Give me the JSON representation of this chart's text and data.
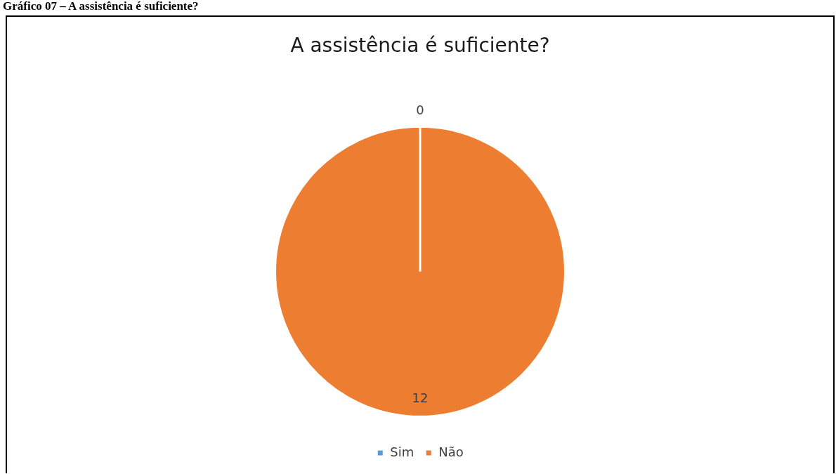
{
  "chart_data": {
    "type": "pie",
    "title": "A assistência é suficiente?",
    "categories": [
      "Sim",
      "Não"
    ],
    "values": [
      0,
      12
    ],
    "colors": [
      "#5b9bd5",
      "#ed7d31"
    ],
    "value_labels": [
      "0",
      "12"
    ],
    "legend": "bottom",
    "annotations": [
      "Gráfico 07 – A assistência é suficiente?"
    ]
  }
}
